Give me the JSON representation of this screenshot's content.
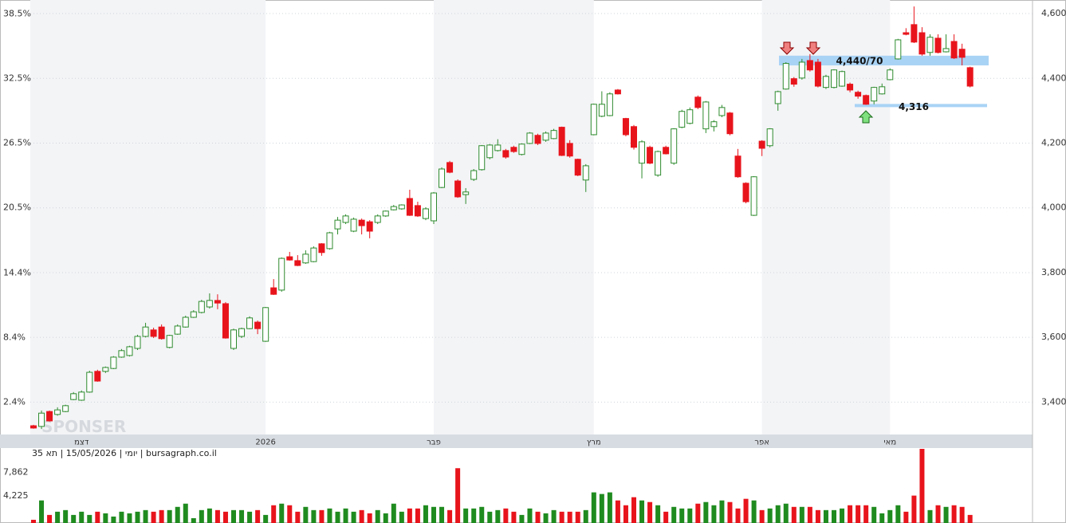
{
  "chart_data": {
    "type": "candlestick",
    "categories": [
      null,
      null,
      null,
      null,
      null,
      null,
      "דצמ",
      null,
      null,
      null,
      null,
      null,
      null,
      null,
      null,
      null,
      null,
      null,
      null,
      null,
      null,
      null,
      null,
      null,
      null,
      null,
      null,
      null,
      null,
      "2026",
      null,
      null,
      null,
      null,
      null,
      null,
      null,
      null,
      null,
      null,
      null,
      null,
      null,
      null,
      null,
      null,
      null,
      null,
      null,
      null,
      "פבר",
      null,
      null,
      null,
      null,
      null,
      null,
      null,
      null,
      null,
      null,
      null,
      null,
      null,
      null,
      null,
      null,
      null,
      null,
      null,
      "מרץ",
      null,
      null,
      null,
      null,
      null,
      null,
      null,
      null,
      null,
      null,
      null,
      null,
      null,
      null,
      null,
      null,
      null,
      null,
      null,
      null,
      "אפר",
      null,
      null,
      null,
      null,
      null,
      null,
      null,
      null,
      null,
      null,
      null,
      null,
      null,
      null,
      null,
      "מאי",
      null,
      null,
      null,
      null,
      null,
      null,
      null,
      null,
      null,
      null
    ],
    "open": [
      3327,
      3325,
      3371,
      3362,
      3371,
      3408,
      3406,
      3431,
      3495,
      3495,
      3504,
      3539,
      3544,
      3566,
      3603,
      3623,
      3632,
      3569,
      3610,
      3632,
      3662,
      3677,
      3694,
      3714,
      3704,
      3566,
      3603,
      3627,
      3647,
      3588,
      3753,
      3746,
      3849,
      3837,
      3830,
      3834,
      3889,
      3874,
      3935,
      3955,
      3928,
      3962,
      3957,
      3955,
      3975,
      3994,
      3997,
      4029,
      4007,
      3967,
      3960,
      4063,
      4140,
      4083,
      4041,
      4088,
      4118,
      4155,
      4177,
      4177,
      4187,
      4165,
      4199,
      4224,
      4209,
      4214,
      4249,
      4199,
      4150,
      4086,
      4226,
      4283,
      4285,
      4364,
      4276,
      4251,
      4138,
      4187,
      4101,
      4187,
      4138,
      4249,
      4261,
      4342,
      4244,
      4251,
      4285,
      4293,
      4160,
      4076,
      3977,
      4206,
      4192,
      4322,
      4367,
      4399,
      4401,
      4455,
      4450,
      4372,
      4372,
      4376,
      4382,
      4357,
      4347,
      4330,
      4352,
      4396,
      4460,
      4541,
      4566,
      4541,
      4480,
      4524,
      4482,
      4514,
      4490,
      4433
    ],
    "high": [
      3330,
      3374,
      3374,
      3384,
      3392,
      3431,
      3436,
      3497,
      3500,
      3510,
      3542,
      3564,
      3574,
      3608,
      3645,
      3630,
      3640,
      3608,
      3640,
      3667,
      3684,
      3716,
      3736,
      3733,
      3709,
      3627,
      3630,
      3665,
      3652,
      3694,
      3780,
      3847,
      3864,
      3854,
      3869,
      3881,
      3891,
      3926,
      3972,
      3980,
      3970,
      3967,
      3962,
      3980,
      3992,
      4009,
      4011,
      4056,
      4019,
      4002,
      4049,
      4125,
      4145,
      4088,
      4061,
      4120,
      4194,
      4197,
      4212,
      4182,
      4192,
      4199,
      4234,
      4229,
      4236,
      4244,
      4251,
      4209,
      4152,
      4135,
      4322,
      4360,
      4357,
      4367,
      4278,
      4256,
      4209,
      4192,
      4177,
      4192,
      4246,
      4303,
      4310,
      4347,
      4330,
      4271,
      4318,
      4296,
      4182,
      4079,
      4098,
      4209,
      4246,
      4362,
      4450,
      4404,
      4460,
      4475,
      4460,
      4411,
      4428,
      4424,
      4387,
      4362,
      4350,
      4374,
      4384,
      4431,
      4522,
      4555,
      4622,
      4558,
      4536,
      4536,
      4536,
      4536,
      4507,
      4436
    ],
    "low": [
      3318,
      3317,
      3340,
      3358,
      3369,
      3406,
      3404,
      3429,
      3463,
      3490,
      3502,
      3537,
      3541,
      3561,
      3600,
      3598,
      3593,
      3566,
      3608,
      3630,
      3660,
      3674,
      3689,
      3687,
      3596,
      3561,
      3598,
      3625,
      3610,
      3586,
      3731,
      3741,
      3837,
      3820,
      3827,
      3832,
      3852,
      3871,
      3918,
      3950,
      3925,
      3918,
      3906,
      3950,
      3972,
      3992,
      3994,
      3975,
      3972,
      3962,
      3950,
      4061,
      4107,
      4031,
      4012,
      4083,
      4115,
      4150,
      4174,
      4152,
      4170,
      4162,
      4197,
      4194,
      4204,
      4212,
      4160,
      4155,
      4098,
      4049,
      4224,
      4280,
      4283,
      4350,
      4221,
      4180,
      4091,
      4135,
      4096,
      4165,
      4133,
      4246,
      4258,
      4305,
      4231,
      4236,
      4280,
      4224,
      4093,
      4014,
      3975,
      4160,
      4187,
      4300,
      4365,
      4374,
      4396,
      4421,
      4372,
      4367,
      4369,
      4374,
      4357,
      4337,
      4318,
      4320,
      4350,
      4394,
      4458,
      4533,
      4509,
      4470,
      4470,
      4477,
      4480,
      4460,
      4440,
      4372
    ],
    "close": [
      3320,
      3366,
      3342,
      3376,
      3389,
      3426,
      3431,
      3492,
      3465,
      3507,
      3539,
      3559,
      3571,
      3603,
      3632,
      3603,
      3596,
      3606,
      3635,
      3662,
      3679,
      3711,
      3714,
      3706,
      3598,
      3623,
      3627,
      3660,
      3627,
      3692,
      3733,
      3844,
      3839,
      3822,
      3857,
      3876,
      3862,
      3923,
      3962,
      3975,
      3965,
      3945,
      3928,
      3975,
      3990,
      4004,
      4009,
      3977,
      3975,
      3997,
      4046,
      4120,
      4110,
      4034,
      4049,
      4115,
      4192,
      4194,
      4194,
      4157,
      4174,
      4197,
      4231,
      4199,
      4231,
      4239,
      4162,
      4160,
      4101,
      4130,
      4320,
      4320,
      4352,
      4352,
      4226,
      4187,
      4204,
      4138,
      4174,
      4167,
      4244,
      4298,
      4303,
      4310,
      4327,
      4266,
      4310,
      4229,
      4096,
      4019,
      4096,
      4184,
      4244,
      4359,
      4446,
      4382,
      4450,
      4426,
      4376,
      4406,
      4426,
      4421,
      4364,
      4345,
      4320,
      4372,
      4374,
      4426,
      4519,
      4536,
      4512,
      4475,
      4527,
      4480,
      4492,
      4463,
      4465,
      4376
    ],
    "volume": [
      500,
      3500,
      1250,
      1750,
      2000,
      1250,
      1750,
      1250,
      1750,
      1500,
      1000,
      1750,
      1500,
      1750,
      2000,
      1750,
      2000,
      2000,
      2500,
      3000,
      750,
      2000,
      2250,
      2000,
      1750,
      2000,
      2000,
      1750,
      2000,
      1250,
      2750,
      3000,
      2750,
      1750,
      2500,
      2000,
      2000,
      2250,
      1750,
      2250,
      1750,
      2000,
      1500,
      2000,
      1500,
      3000,
      1750,
      2250,
      2250,
      2750,
      2500,
      2500,
      2000,
      8500,
      2250,
      2250,
      2500,
      1750,
      2000,
      2250,
      1750,
      1250,
      2250,
      1750,
      1500,
      2000,
      1750,
      1750,
      1750,
      2000,
      4750,
      4500,
      4750,
      3500,
      2750,
      4000,
      3500,
      3250,
      2750,
      1750,
      2500,
      2250,
      2250,
      3000,
      3250,
      2750,
      3500,
      3250,
      2250,
      3750,
      3500,
      2000,
      2250,
      2750,
      3000,
      2500,
      2500,
      2500,
      2000,
      2000,
      2000,
      2250,
      2750,
      2750,
      2750,
      2500,
      1500,
      2000,
      2750,
      1750,
      4250,
      11500,
      2000,
      2750,
      2500,
      2750,
      2500,
      1250
    ],
    "up_color": "#2e8b2e",
    "down_color": "#e8141c",
    "ylim": [
      3300,
      4642
    ],
    "yticks": [
      {
        "value": 3400,
        "label": "3,400"
      },
      {
        "value": 3600,
        "label": "3,600"
      },
      {
        "value": 3800,
        "label": "3,800"
      },
      {
        "value": 4000,
        "label": "4,000"
      },
      {
        "value": 4200,
        "label": "4,200"
      },
      {
        "value": 4400,
        "label": "4,400"
      },
      {
        "value": 4600,
        "label": "4,600"
      }
    ],
    "y2lim": [
      -0.6,
      39.8
    ],
    "y2ticks": [
      {
        "value": 2.4,
        "label": "2.4%"
      },
      {
        "value": 8.4,
        "label": "8.4%"
      },
      {
        "value": 14.4,
        "label": "14.4%"
      },
      {
        "value": 20.5,
        "label": "20.5%"
      },
      {
        "value": 26.5,
        "label": "26.5%"
      },
      {
        "value": 32.5,
        "label": "32.5%"
      },
      {
        "value": 38.5,
        "label": "38.5%"
      }
    ],
    "volume_ylim": [
      0,
      11500
    ],
    "volume_ticks": [
      {
        "value": 4225,
        "label": "4,225"
      },
      {
        "value": 7862,
        "label": "7,862"
      }
    ],
    "grid": true,
    "annotations": [
      {
        "label": "4,440/70",
        "range": [
          4440,
          4470
        ]
      },
      {
        "label": "4,316",
        "value": 4316
      }
    ],
    "info": "יומי | 15/05/2026 | תא 35 | bursagraph.co.il",
    "watermark": "SPONSER"
  }
}
